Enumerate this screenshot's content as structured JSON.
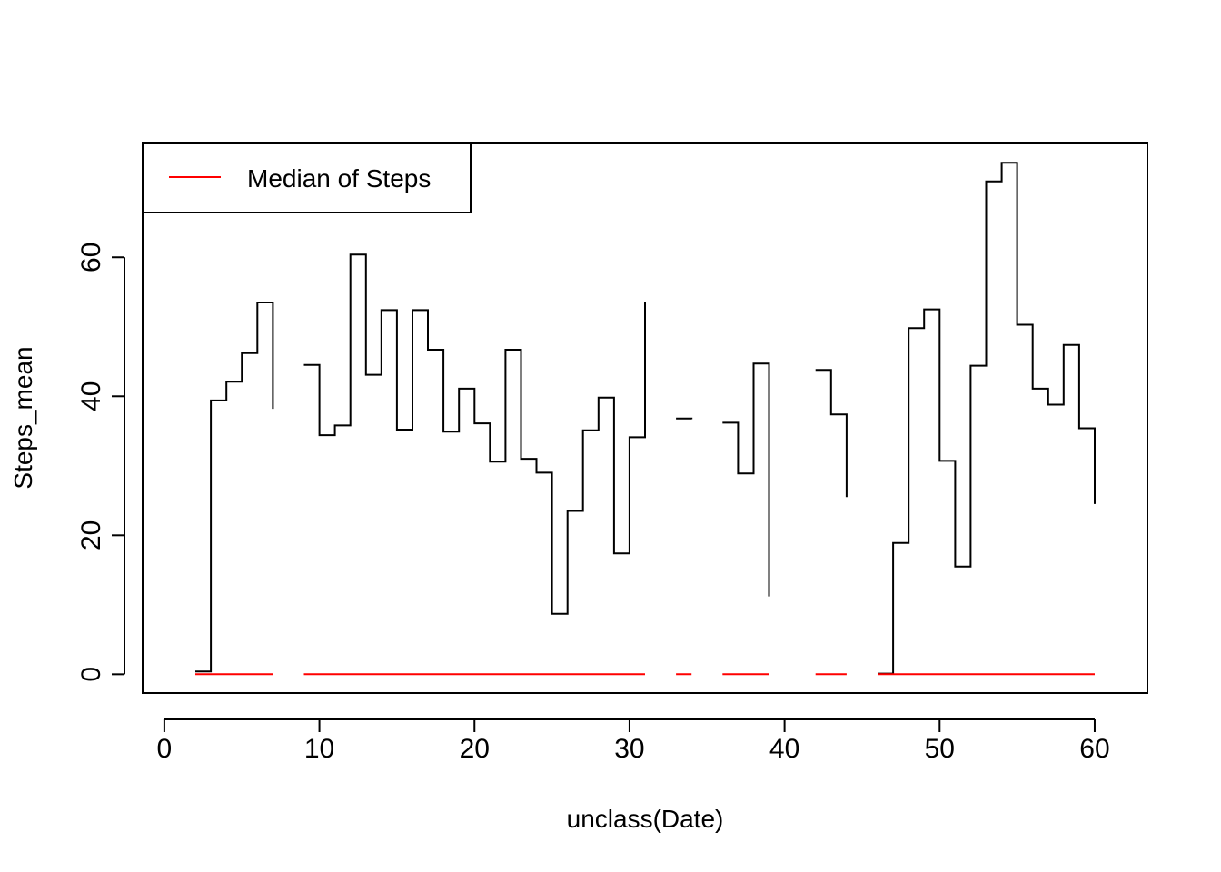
{
  "chart_data": {
    "type": "line",
    "step": true,
    "xlabel": "unclass(Date)",
    "ylabel": "Steps_mean",
    "xlim": [
      -1.4,
      63.4
    ],
    "ylim": [
      -2.7,
      76.5
    ],
    "x_ticks": [
      0,
      10,
      20,
      30,
      40,
      50,
      60
    ],
    "y_ticks": [
      0,
      20,
      40,
      60
    ],
    "legend": {
      "position": "top-left",
      "entries": [
        "Median of Steps"
      ]
    },
    "colors": {
      "mean": "#000000",
      "median": "#ff0000",
      "frame": "#000000"
    },
    "series": [
      {
        "key": "mean",
        "x": [
          2,
          3,
          4,
          5,
          6,
          7,
          8,
          9,
          10,
          11,
          12,
          13,
          14,
          15,
          16,
          17,
          18,
          19,
          20,
          21,
          22,
          23,
          24,
          25,
          26,
          27,
          28,
          29,
          30,
          31,
          32,
          33,
          34,
          35,
          36,
          37,
          38,
          39,
          40,
          41,
          42,
          43,
          44,
          45,
          46,
          47,
          48,
          49,
          50,
          51,
          52,
          53,
          54,
          55,
          56,
          57,
          58,
          59,
          60
        ],
        "y": [
          0.4,
          39.4,
          42.1,
          46.2,
          53.5,
          38.2,
          null,
          44.5,
          34.4,
          35.8,
          60.4,
          43.1,
          52.4,
          35.2,
          52.4,
          46.7,
          34.9,
          41.1,
          36.1,
          30.6,
          46.7,
          31.0,
          29.0,
          8.7,
          23.5,
          35.1,
          39.8,
          17.4,
          34.1,
          53.5,
          null,
          36.8,
          36.7,
          null,
          36.2,
          28.9,
          44.7,
          11.2,
          null,
          null,
          43.8,
          37.4,
          25.5,
          null,
          0.1,
          18.9,
          49.8,
          52.5,
          30.7,
          15.5,
          44.4,
          70.9,
          73.6,
          50.3,
          41.1,
          38.8,
          47.4,
          35.4,
          24.5
        ]
      },
      {
        "key": "median",
        "x": [
          2,
          3,
          4,
          5,
          6,
          7,
          8,
          9,
          10,
          11,
          12,
          13,
          14,
          15,
          16,
          17,
          18,
          19,
          20,
          21,
          22,
          23,
          24,
          25,
          26,
          27,
          28,
          29,
          30,
          31,
          32,
          33,
          34,
          35,
          36,
          37,
          38,
          39,
          40,
          41,
          42,
          43,
          44,
          45,
          46,
          47,
          48,
          49,
          50,
          51,
          52,
          53,
          54,
          55,
          56,
          57,
          58,
          59,
          60
        ],
        "y": [
          0,
          0,
          0,
          0,
          0,
          0,
          null,
          0,
          0,
          0,
          0,
          0,
          0,
          0,
          0,
          0,
          0,
          0,
          0,
          0,
          0,
          0,
          0,
          0,
          0,
          0,
          0,
          0,
          0,
          0,
          null,
          0,
          0,
          null,
          0,
          0,
          0,
          0,
          null,
          null,
          0,
          0,
          0,
          null,
          0,
          0,
          0,
          0,
          0,
          0,
          0,
          0,
          0,
          0,
          0,
          0,
          0,
          0,
          0
        ]
      }
    ]
  }
}
